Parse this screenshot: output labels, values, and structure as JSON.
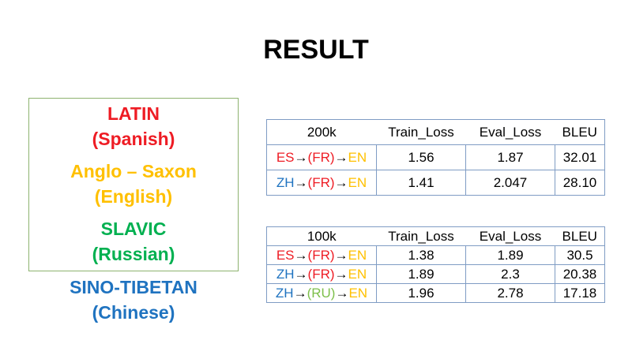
{
  "title": "RESULT",
  "languages": [
    {
      "family": "LATIN",
      "language": "(Spanish)",
      "color": "#ee1c24"
    },
    {
      "family": "Anglo – Saxon",
      "language": "(English)",
      "color": "#ffc000"
    },
    {
      "family": "SLAVIC",
      "language": "(Russian)",
      "color": "#00b050"
    },
    {
      "family": "SINO-TIBETAN",
      "language": "(Chinese)",
      "color": "#1f73c0"
    }
  ],
  "colors": {
    "ES": "#ee1c24",
    "FR": "#ee1c24",
    "EN": "#ffc000",
    "ZH": "#1f73c0",
    "RU": "#7dbf4a",
    "arrow": "#000000"
  },
  "tables": [
    {
      "headers": [
        "200k",
        "Train_Loss",
        "Eval_Loss",
        "BLEU"
      ],
      "rows": [
        {
          "route": [
            [
              "ES",
              "#ee1c24"
            ],
            [
              "→",
              "#000000"
            ],
            [
              "(FR)",
              "#ee1c24"
            ],
            [
              "→",
              "#000000"
            ],
            [
              "EN",
              "#ffc000"
            ]
          ],
          "train_loss": "1.56",
          "eval_loss": "1.87",
          "bleu": "32.01"
        },
        {
          "route": [
            [
              "ZH",
              "#1f73c0"
            ],
            [
              "→",
              "#000000"
            ],
            [
              "(FR)",
              "#ee1c24"
            ],
            [
              "→",
              "#000000"
            ],
            [
              "EN",
              "#ffc000"
            ]
          ],
          "train_loss": "1.41",
          "eval_loss": "2.047",
          "bleu": "28.10"
        }
      ]
    },
    {
      "headers": [
        "100k",
        "Train_Loss",
        "Eval_Loss",
        "BLEU"
      ],
      "rows": [
        {
          "route": [
            [
              "ES",
              "#ee1c24"
            ],
            [
              "→",
              "#000000"
            ],
            [
              "(FR)",
              "#ee1c24"
            ],
            [
              "→",
              "#000000"
            ],
            [
              "EN",
              "#ffc000"
            ]
          ],
          "train_loss": "1.38",
          "eval_loss": "1.89",
          "bleu": "30.5"
        },
        {
          "route": [
            [
              "ZH",
              "#1f73c0"
            ],
            [
              "→",
              "#000000"
            ],
            [
              "(FR)",
              "#ee1c24"
            ],
            [
              "→",
              "#000000"
            ],
            [
              "EN",
              "#ffc000"
            ]
          ],
          "train_loss": "1.89",
          "eval_loss": "2.3",
          "bleu": "20.38"
        },
        {
          "route": [
            [
              "ZH",
              "#1f73c0"
            ],
            [
              "→",
              "#000000"
            ],
            [
              "(RU)",
              "#7dbf4a"
            ],
            [
              "→",
              "#000000"
            ],
            [
              "EN",
              "#ffc000"
            ]
          ],
          "train_loss": "1.96",
          "eval_loss": "2.78",
          "bleu": "17.18"
        }
      ]
    }
  ]
}
